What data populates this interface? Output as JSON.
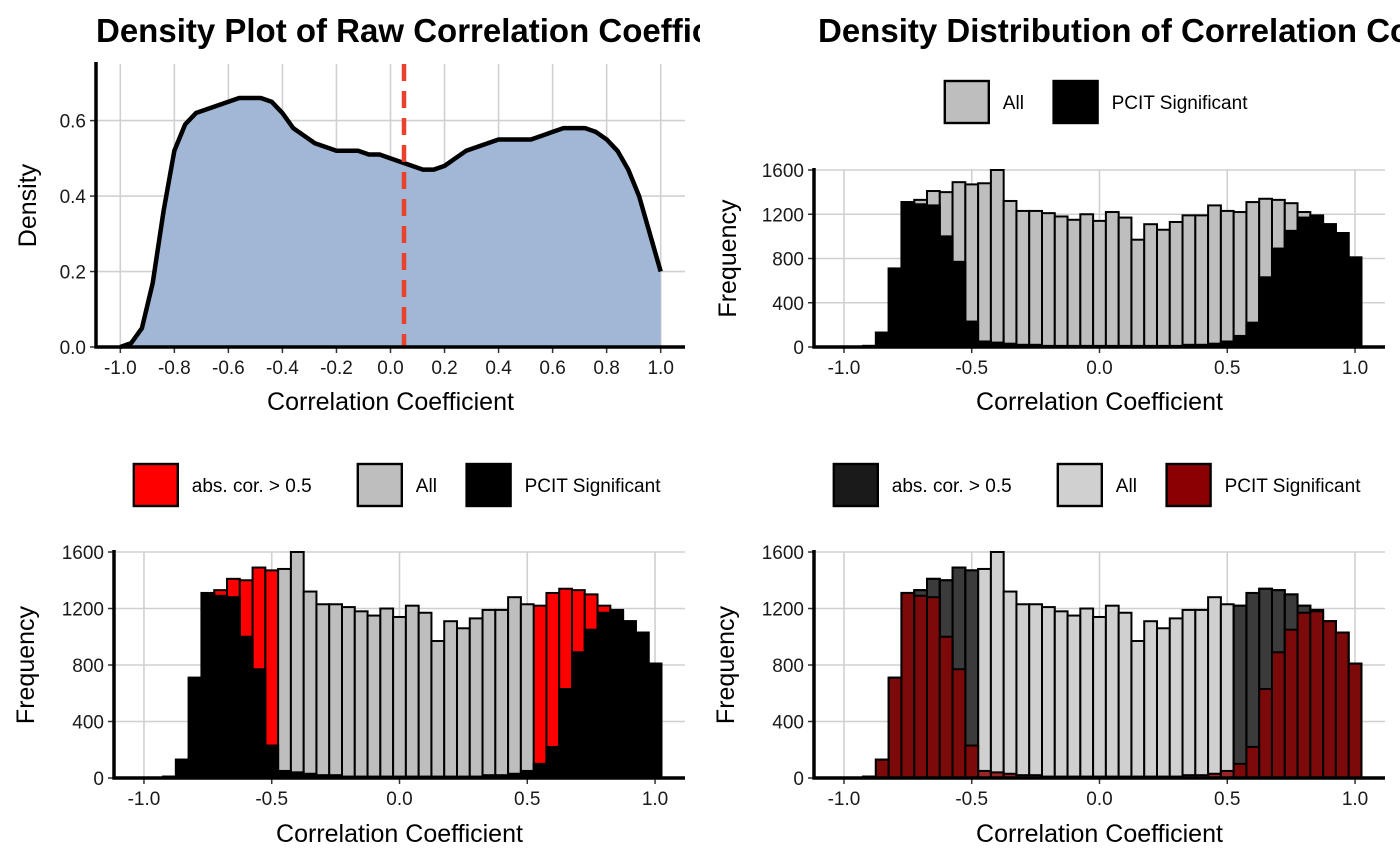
{
  "chart_data": [
    {
      "type": "area",
      "title": "Density Plot of Raw Correlation Coefficients",
      "xlabel": "Correlation Coefficient",
      "ylabel": "Density",
      "xlim": [
        -1.0,
        1.0
      ],
      "ylim": [
        0,
        0.75
      ],
      "x_ticks": [
        "-1.0",
        "-0.8",
        "-0.6",
        "-0.4",
        "-0.2",
        "0.0",
        "0.2",
        "0.4",
        "0.6",
        "0.8",
        "1.0"
      ],
      "y_ticks": [
        "0.0",
        "0.2",
        "0.4",
        "0.6"
      ],
      "grid": true,
      "fill_color": "#a1b7d5",
      "line_color": "#000000",
      "x": [
        -1.0,
        -0.96,
        -0.92,
        -0.88,
        -0.84,
        -0.8,
        -0.76,
        -0.72,
        -0.68,
        -0.64,
        -0.6,
        -0.56,
        -0.52,
        -0.48,
        -0.44,
        -0.4,
        -0.36,
        -0.32,
        -0.28,
        -0.24,
        -0.2,
        -0.16,
        -0.12,
        -0.08,
        -0.04,
        0.0,
        0.04,
        0.08,
        0.12,
        0.16,
        0.2,
        0.24,
        0.28,
        0.32,
        0.36,
        0.4,
        0.44,
        0.48,
        0.52,
        0.56,
        0.6,
        0.64,
        0.68,
        0.72,
        0.76,
        0.8,
        0.84,
        0.88,
        0.92,
        0.96,
        1.0
      ],
      "y": [
        0.0,
        0.01,
        0.05,
        0.17,
        0.36,
        0.52,
        0.59,
        0.62,
        0.63,
        0.64,
        0.65,
        0.66,
        0.66,
        0.66,
        0.65,
        0.62,
        0.58,
        0.56,
        0.54,
        0.53,
        0.52,
        0.52,
        0.52,
        0.51,
        0.51,
        0.5,
        0.49,
        0.48,
        0.47,
        0.47,
        0.48,
        0.5,
        0.52,
        0.53,
        0.54,
        0.55,
        0.55,
        0.55,
        0.55,
        0.56,
        0.57,
        0.58,
        0.58,
        0.58,
        0.57,
        0.55,
        0.52,
        0.47,
        0.4,
        0.3,
        0.2
      ],
      "vline": {
        "x": 0.05,
        "color": "#e8412c"
      }
    },
    {
      "type": "bar",
      "title": "Density Distribution of Correlation Coefficients",
      "xlabel": "Correlation Coefficient",
      "ylabel": "Frequency",
      "xlim": [
        -1.0,
        1.0
      ],
      "ylim": [
        0,
        1600
      ],
      "x_ticks": [
        "-1.0",
        "-0.5",
        "0.0",
        "0.5",
        "1.0"
      ],
      "y_ticks": [
        "0",
        "400",
        "800",
        "1200",
        "1600"
      ],
      "grid": true,
      "legend_position": "top",
      "bin_width": 0.05,
      "x": [
        -0.95,
        -0.9,
        -0.85,
        -0.8,
        -0.75,
        -0.7,
        -0.65,
        -0.6,
        -0.55,
        -0.5,
        -0.45,
        -0.4,
        -0.35,
        -0.3,
        -0.25,
        -0.2,
        -0.15,
        -0.1,
        -0.05,
        0.0,
        0.05,
        0.1,
        0.15,
        0.2,
        0.25,
        0.3,
        0.35,
        0.4,
        0.45,
        0.5,
        0.55,
        0.6,
        0.65,
        0.7,
        0.75,
        0.8,
        0.85,
        0.9,
        0.95,
        1.0
      ],
      "series": [
        {
          "name": "All",
          "color": "#bebebe",
          "stroke": "#000000",
          "values": [
            0,
            10,
            130,
            710,
            1310,
            1330,
            1410,
            1400,
            1490,
            1470,
            1480,
            1600,
            1320,
            1230,
            1230,
            1210,
            1180,
            1150,
            1200,
            1140,
            1220,
            1170,
            970,
            1110,
            1060,
            1130,
            1190,
            1190,
            1280,
            1230,
            1220,
            1310,
            1340,
            1330,
            1300,
            1220,
            1190,
            1110,
            1030,
            810
          ]
        },
        {
          "name": "PCIT Significant",
          "color": "#000000",
          "stroke": "#000000",
          "values": [
            0,
            10,
            130,
            710,
            1310,
            1290,
            1280,
            1000,
            770,
            230,
            50,
            40,
            30,
            20,
            20,
            10,
            10,
            10,
            10,
            10,
            10,
            10,
            10,
            10,
            10,
            10,
            20,
            20,
            30,
            50,
            100,
            220,
            630,
            890,
            1050,
            1170,
            1180,
            1110,
            1030,
            810
          ]
        }
      ]
    },
    {
      "type": "bar",
      "title": "",
      "xlabel": "Correlation Coefficient",
      "ylabel": "Frequency",
      "xlim": [
        -1.0,
        1.0
      ],
      "ylim": [
        0,
        1600
      ],
      "x_ticks": [
        "-1.0",
        "-0.5",
        "0.0",
        "0.5",
        "1.0"
      ],
      "y_ticks": [
        "0",
        "400",
        "800",
        "1200",
        "1600"
      ],
      "grid": true,
      "legend_position": "top",
      "bin_width": 0.05,
      "x": [
        -0.95,
        -0.9,
        -0.85,
        -0.8,
        -0.75,
        -0.7,
        -0.65,
        -0.6,
        -0.55,
        -0.5,
        -0.45,
        -0.4,
        -0.35,
        -0.3,
        -0.25,
        -0.2,
        -0.15,
        -0.1,
        -0.05,
        0.0,
        0.05,
        0.1,
        0.15,
        0.2,
        0.25,
        0.3,
        0.35,
        0.4,
        0.45,
        0.5,
        0.55,
        0.6,
        0.65,
        0.7,
        0.75,
        0.8,
        0.85,
        0.9,
        0.95,
        1.0
      ],
      "series": [
        {
          "name": "abs. cor. > 0.5",
          "color": "#ff0000",
          "stroke": "#000000",
          "values": [
            0,
            10,
            130,
            710,
            1310,
            1330,
            1410,
            1400,
            1490,
            1470,
            0,
            0,
            0,
            0,
            0,
            0,
            0,
            0,
            0,
            0,
            0,
            0,
            0,
            0,
            0,
            0,
            0,
            0,
            0,
            0,
            1220,
            1310,
            1340,
            1330,
            1300,
            1220,
            1190,
            1110,
            1030,
            810
          ]
        },
        {
          "name": "All",
          "color": "#bebebe",
          "stroke": "#000000",
          "values": [
            0,
            0,
            0,
            0,
            0,
            0,
            0,
            0,
            0,
            0,
            1480,
            1600,
            1320,
            1230,
            1230,
            1210,
            1180,
            1150,
            1200,
            1140,
            1220,
            1170,
            970,
            1110,
            1060,
            1130,
            1190,
            1190,
            1280,
            1230,
            0,
            0,
            0,
            0,
            0,
            0,
            0,
            0,
            0,
            0
          ]
        },
        {
          "name": "PCIT Significant",
          "color": "#000000",
          "stroke": "#000000",
          "values": [
            0,
            10,
            130,
            710,
            1310,
            1290,
            1280,
            1000,
            770,
            230,
            50,
            40,
            30,
            20,
            20,
            10,
            10,
            10,
            10,
            10,
            10,
            10,
            10,
            10,
            10,
            10,
            20,
            20,
            30,
            50,
            100,
            220,
            630,
            890,
            1050,
            1170,
            1180,
            1110,
            1030,
            810
          ]
        }
      ]
    },
    {
      "type": "bar",
      "title": "",
      "xlabel": "Correlation Coefficient",
      "ylabel": "Frequency",
      "xlim": [
        -1.0,
        1.0
      ],
      "ylim": [
        0,
        1600
      ],
      "x_ticks": [
        "-1.0",
        "-0.5",
        "0.0",
        "0.5",
        "1.0"
      ],
      "y_ticks": [
        "0",
        "400",
        "800",
        "1200",
        "1600"
      ],
      "grid": true,
      "legend_position": "top",
      "bin_width": 0.05,
      "x": [
        -0.95,
        -0.9,
        -0.85,
        -0.8,
        -0.75,
        -0.7,
        -0.65,
        -0.6,
        -0.55,
        -0.5,
        -0.45,
        -0.4,
        -0.35,
        -0.3,
        -0.25,
        -0.2,
        -0.15,
        -0.1,
        -0.05,
        0.0,
        0.05,
        0.1,
        0.15,
        0.2,
        0.25,
        0.3,
        0.35,
        0.4,
        0.45,
        0.5,
        0.55,
        0.6,
        0.65,
        0.7,
        0.75,
        0.8,
        0.85,
        0.9,
        0.95,
        1.0
      ],
      "series": [
        {
          "name": "All",
          "color": "#d0d0d0",
          "stroke": "#000000",
          "values": [
            0,
            10,
            130,
            710,
            1310,
            1330,
            1410,
            1400,
            1490,
            1470,
            1480,
            1600,
            1320,
            1230,
            1230,
            1210,
            1180,
            1150,
            1200,
            1140,
            1220,
            1170,
            970,
            1110,
            1060,
            1130,
            1190,
            1190,
            1280,
            1230,
            1220,
            1310,
            1340,
            1330,
            1300,
            1220,
            1190,
            1110,
            1030,
            810
          ]
        },
        {
          "name": "abs. cor. > 0.5",
          "color": "#1a1a1a",
          "stroke": "#000000",
          "values": [
            0,
            10,
            130,
            710,
            1310,
            1330,
            1410,
            1400,
            1490,
            1470,
            0,
            0,
            0,
            0,
            0,
            0,
            0,
            0,
            0,
            0,
            0,
            0,
            0,
            0,
            0,
            0,
            0,
            0,
            0,
            0,
            1220,
            1310,
            1340,
            1330,
            1300,
            1220,
            1190,
            1110,
            1030,
            810
          ]
        },
        {
          "name": "PCIT Significant",
          "color": "#8b0000",
          "stroke": "#000000",
          "values": [
            0,
            10,
            130,
            710,
            1310,
            1290,
            1280,
            1000,
            770,
            230,
            50,
            40,
            30,
            20,
            20,
            10,
            10,
            10,
            10,
            10,
            10,
            10,
            10,
            10,
            10,
            10,
            20,
            20,
            30,
            50,
            100,
            220,
            630,
            890,
            1050,
            1170,
            1180,
            1110,
            1030,
            810
          ]
        }
      ],
      "legend_order": [
        "abs. cor. > 0.5",
        "All",
        "PCIT Significant"
      ]
    }
  ]
}
